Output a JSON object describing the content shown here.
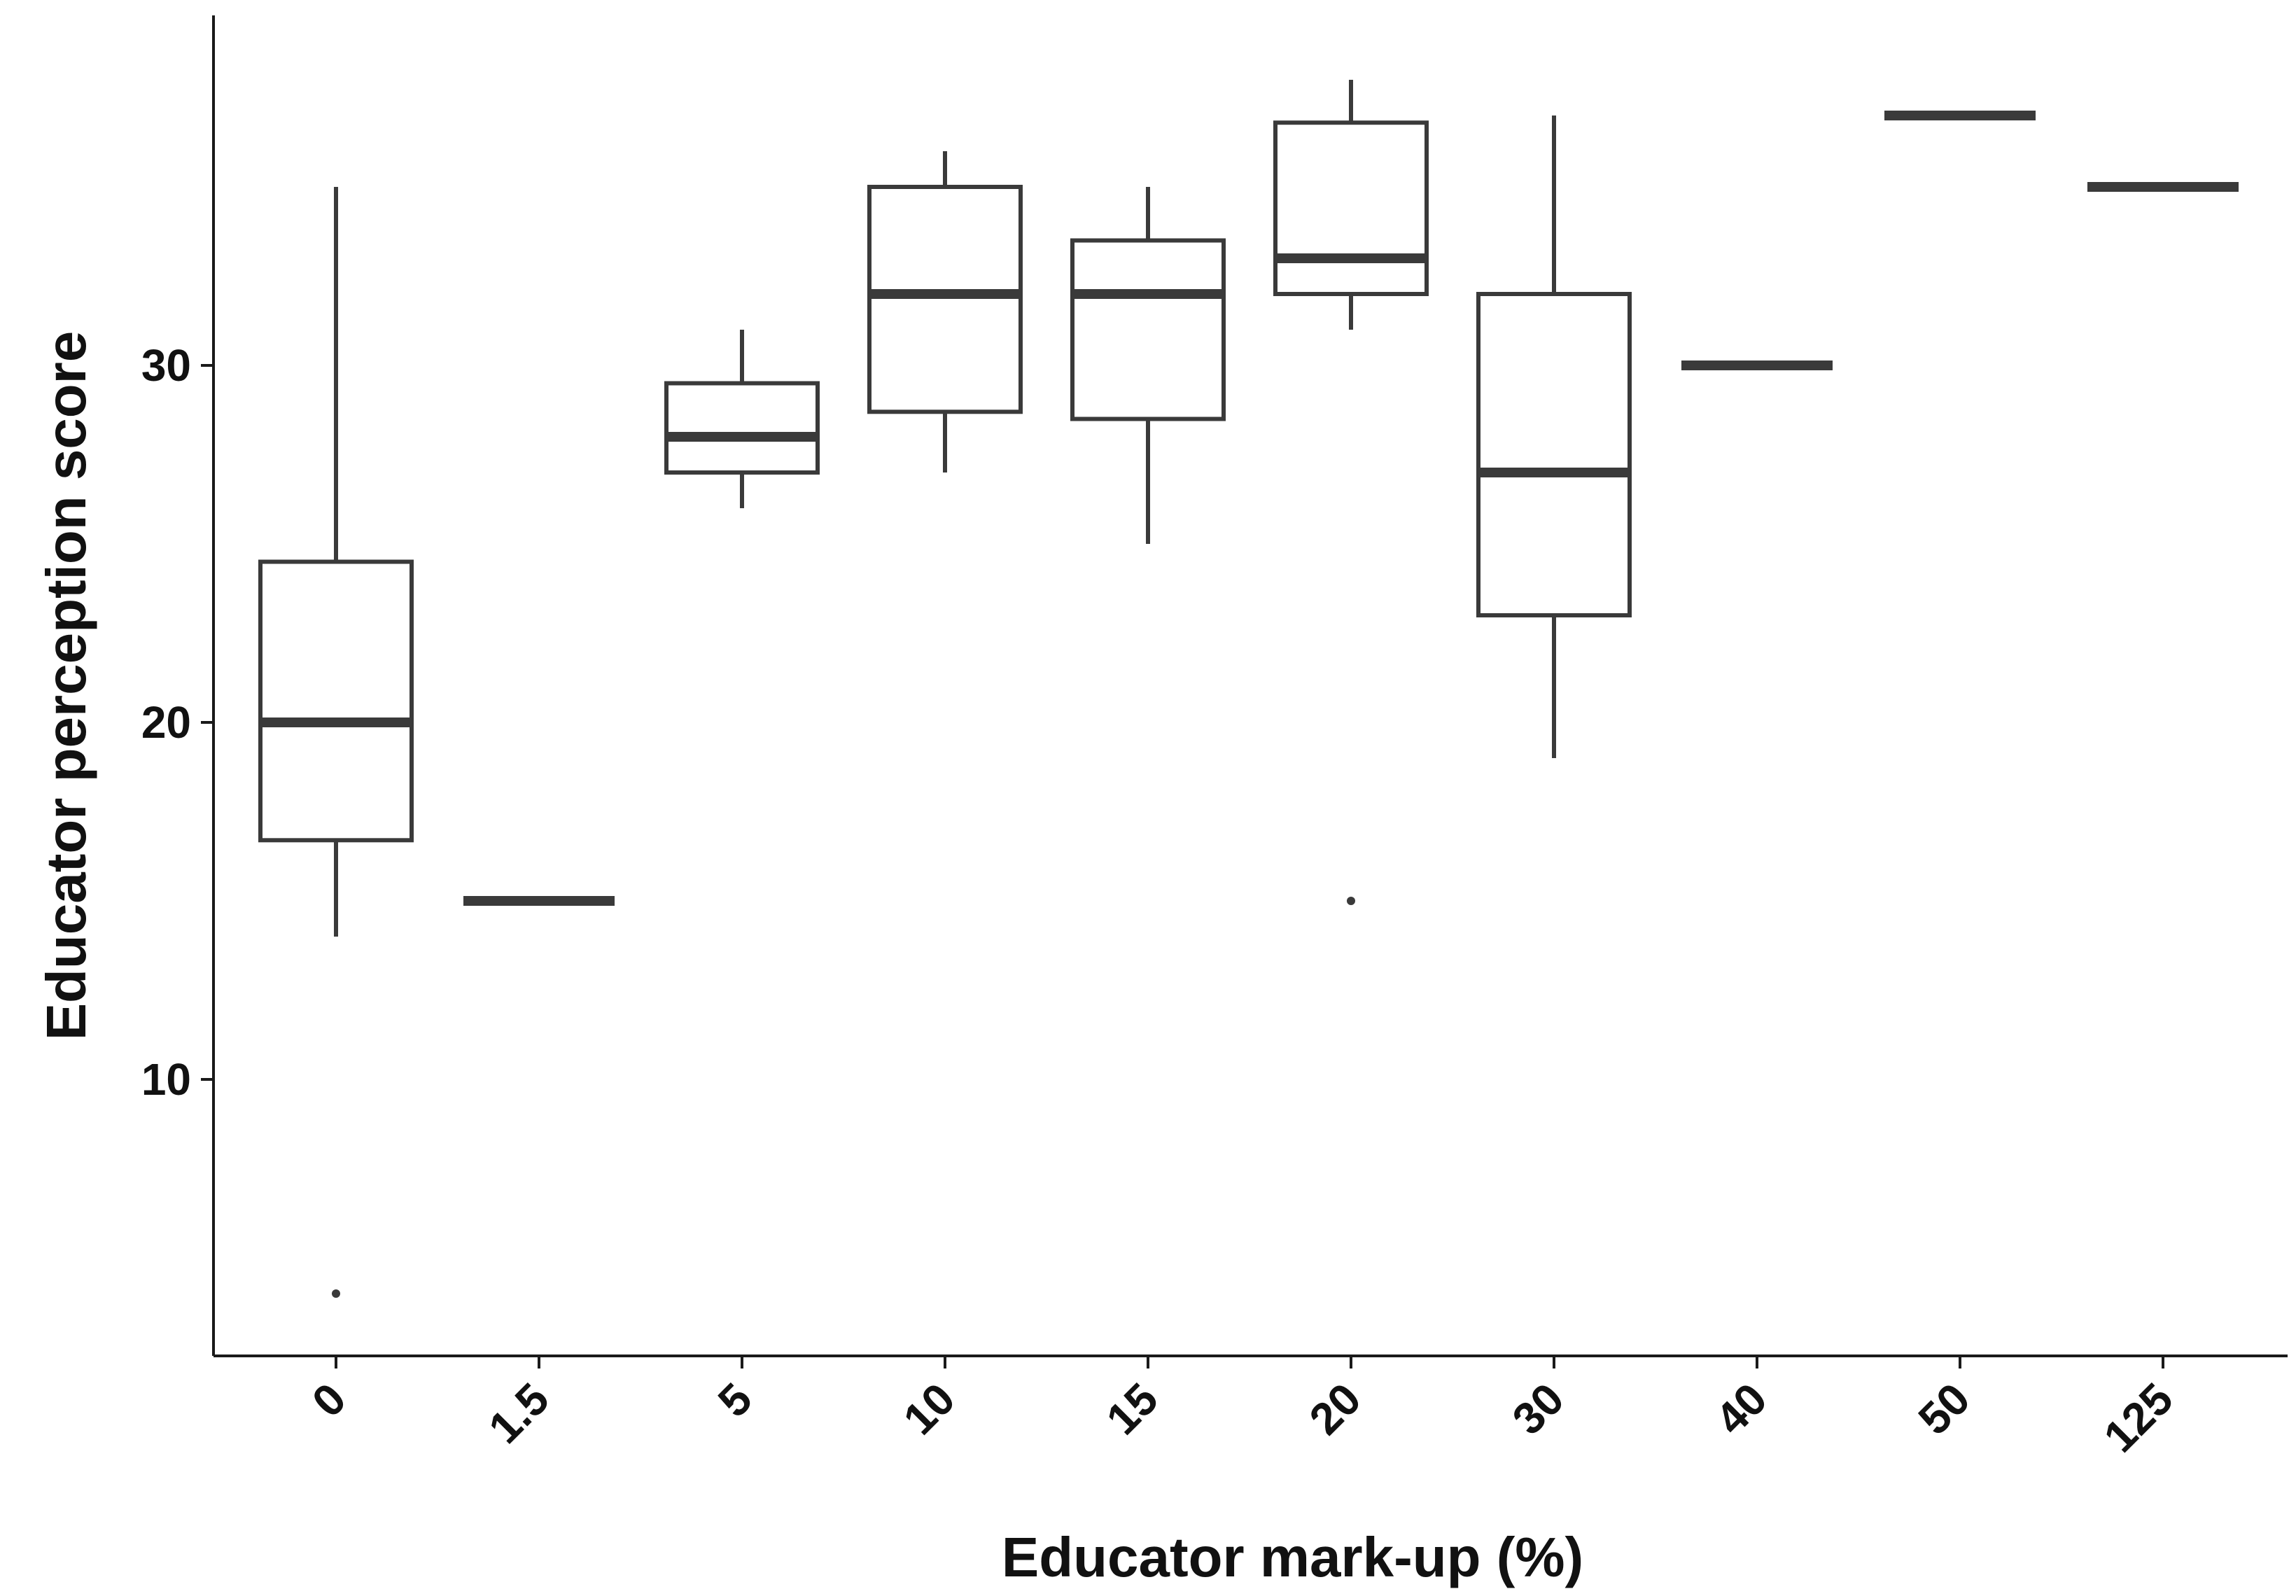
{
  "chart_data": {
    "type": "box",
    "xlabel": "Educator mark-up (%)",
    "ylabel": "Educator perception score",
    "categories": [
      "0",
      "1.5",
      "5",
      "10",
      "15",
      "20",
      "30",
      "40",
      "50",
      "125"
    ],
    "y_ticks": [
      10,
      20,
      30
    ],
    "ylim": [
      2.5,
      40.5
    ],
    "grid": false,
    "colors": {
      "stroke": "#3a3a3a",
      "axis": "#1a1a1a"
    },
    "boxes": [
      {
        "category": "0",
        "whisker_low": 14,
        "q1": 16.7,
        "median": 20,
        "q3": 24.5,
        "whisker_high": 35,
        "outliers": [
          4
        ]
      },
      {
        "category": "1.5",
        "whisker_low": 15,
        "q1": 15,
        "median": 15,
        "q3": 15,
        "whisker_high": 15,
        "outliers": []
      },
      {
        "category": "5",
        "whisker_low": 26,
        "q1": 27,
        "median": 28,
        "q3": 29.5,
        "whisker_high": 31,
        "outliers": []
      },
      {
        "category": "10",
        "whisker_low": 27,
        "q1": 28.7,
        "median": 32,
        "q3": 35,
        "whisker_high": 36,
        "outliers": []
      },
      {
        "category": "15",
        "whisker_low": 25,
        "q1": 28.5,
        "median": 32,
        "q3": 33.5,
        "whisker_high": 35,
        "outliers": []
      },
      {
        "category": "20",
        "whisker_low": 31,
        "q1": 32,
        "median": 33,
        "q3": 36.8,
        "whisker_high": 38,
        "outliers": [
          15
        ]
      },
      {
        "category": "30",
        "whisker_low": 19,
        "q1": 23,
        "median": 27,
        "q3": 32,
        "whisker_high": 37,
        "outliers": []
      },
      {
        "category": "40",
        "whisker_low": 30,
        "q1": 30,
        "median": 30,
        "q3": 30,
        "whisker_high": 30,
        "outliers": []
      },
      {
        "category": "50",
        "whisker_low": 37,
        "q1": 37,
        "median": 37,
        "q3": 37,
        "whisker_high": 37,
        "outliers": []
      },
      {
        "category": "125",
        "whisker_low": 35,
        "q1": 35,
        "median": 35,
        "q3": 35,
        "whisker_high": 35,
        "outliers": []
      }
    ]
  }
}
